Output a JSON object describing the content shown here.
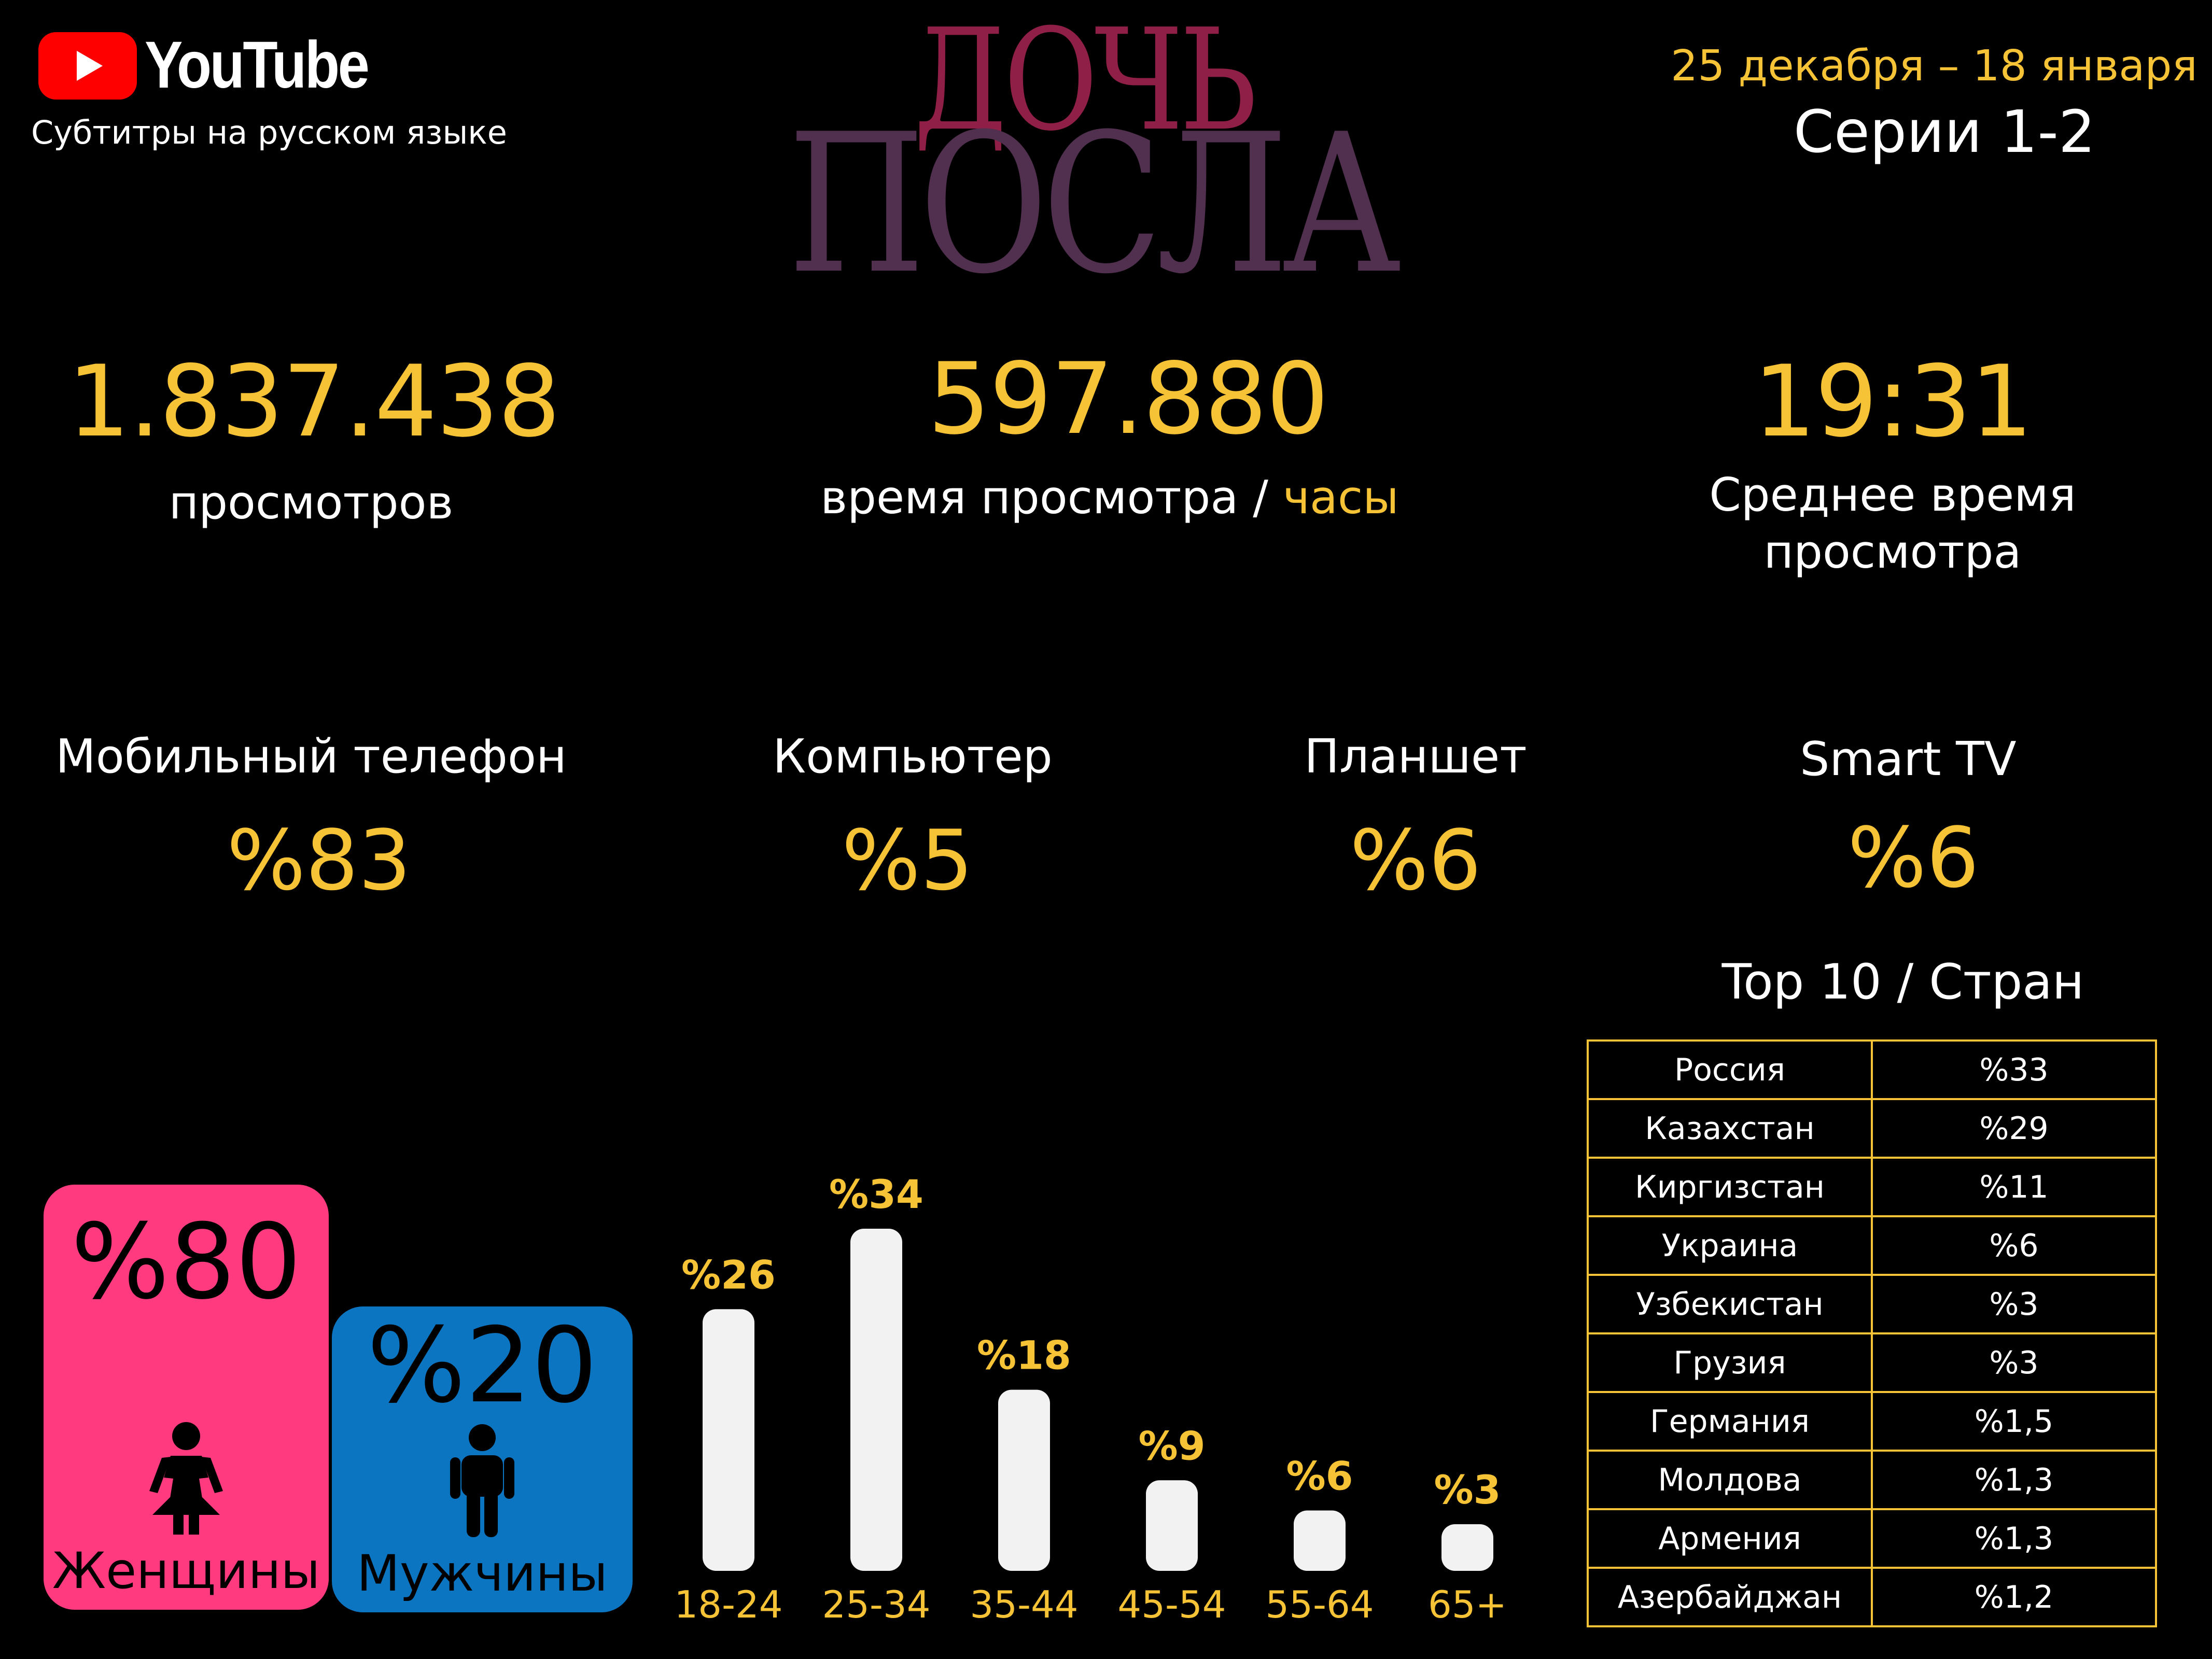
{
  "header": {
    "brand": "YouTube",
    "subtitle": "Субтитры на русском языке",
    "title_line1": "ДОЧЬ",
    "title_line2": "ПОСЛА",
    "date_range": "25 декабря – 18 января",
    "series": "Серии 1-2"
  },
  "stats": {
    "views": {
      "value": "1.837.438",
      "label": "просмотров"
    },
    "watch_time": {
      "value": "597.880",
      "label": "время просмотра / ",
      "unit": "часы"
    },
    "avg_time": {
      "value": "19:31",
      "label_line1": "Среднее время",
      "label_line2": "просмотра"
    }
  },
  "devices": [
    {
      "label": "Мобильный телефон",
      "value": "%83"
    },
    {
      "label": "Компьютер",
      "value": "%5"
    },
    {
      "label": "Планшет",
      "value": "%6"
    },
    {
      "label": "Smart TV",
      "value": "%6"
    }
  ],
  "gender": {
    "women": {
      "value": "%80",
      "label": "Женщины"
    },
    "men": {
      "value": "%20",
      "label": "Мужчины"
    }
  },
  "countries": {
    "title": "Top 10 / Стран",
    "rows": [
      {
        "name": "Россия",
        "value": "%33"
      },
      {
        "name": "Казахстан",
        "value": "%29"
      },
      {
        "name": "Киргизстан",
        "value": "%11"
      },
      {
        "name": "Украина",
        "value": "%6"
      },
      {
        "name": "Узбекистан",
        "value": "%3"
      },
      {
        "name": "Грузия",
        "value": "%3"
      },
      {
        "name": "Германия",
        "value": "%1,5"
      },
      {
        "name": "Молдова",
        "value": "%1,3"
      },
      {
        "name": "Армения",
        "value": "%1,3"
      },
      {
        "name": "Азербайджан",
        "value": "%1,2"
      }
    ]
  },
  "colors": {
    "accent": "#f5c335",
    "women": "#ff3a7f",
    "men": "#0c75c2",
    "title_top": "#8f1f46",
    "title_bottom": "#51304f",
    "bar": "#f2f2f2"
  },
  "chart_data": {
    "type": "bar",
    "categories": [
      "18-24",
      "25-34",
      "35-44",
      "45-54",
      "55-64",
      "65+"
    ],
    "values": [
      26,
      34,
      18,
      9,
      6,
      3
    ],
    "value_labels": [
      "%26",
      "%34",
      "%18",
      "%9",
      "%6",
      "%3"
    ],
    "ylim": [
      0,
      34
    ],
    "grid": false
  }
}
